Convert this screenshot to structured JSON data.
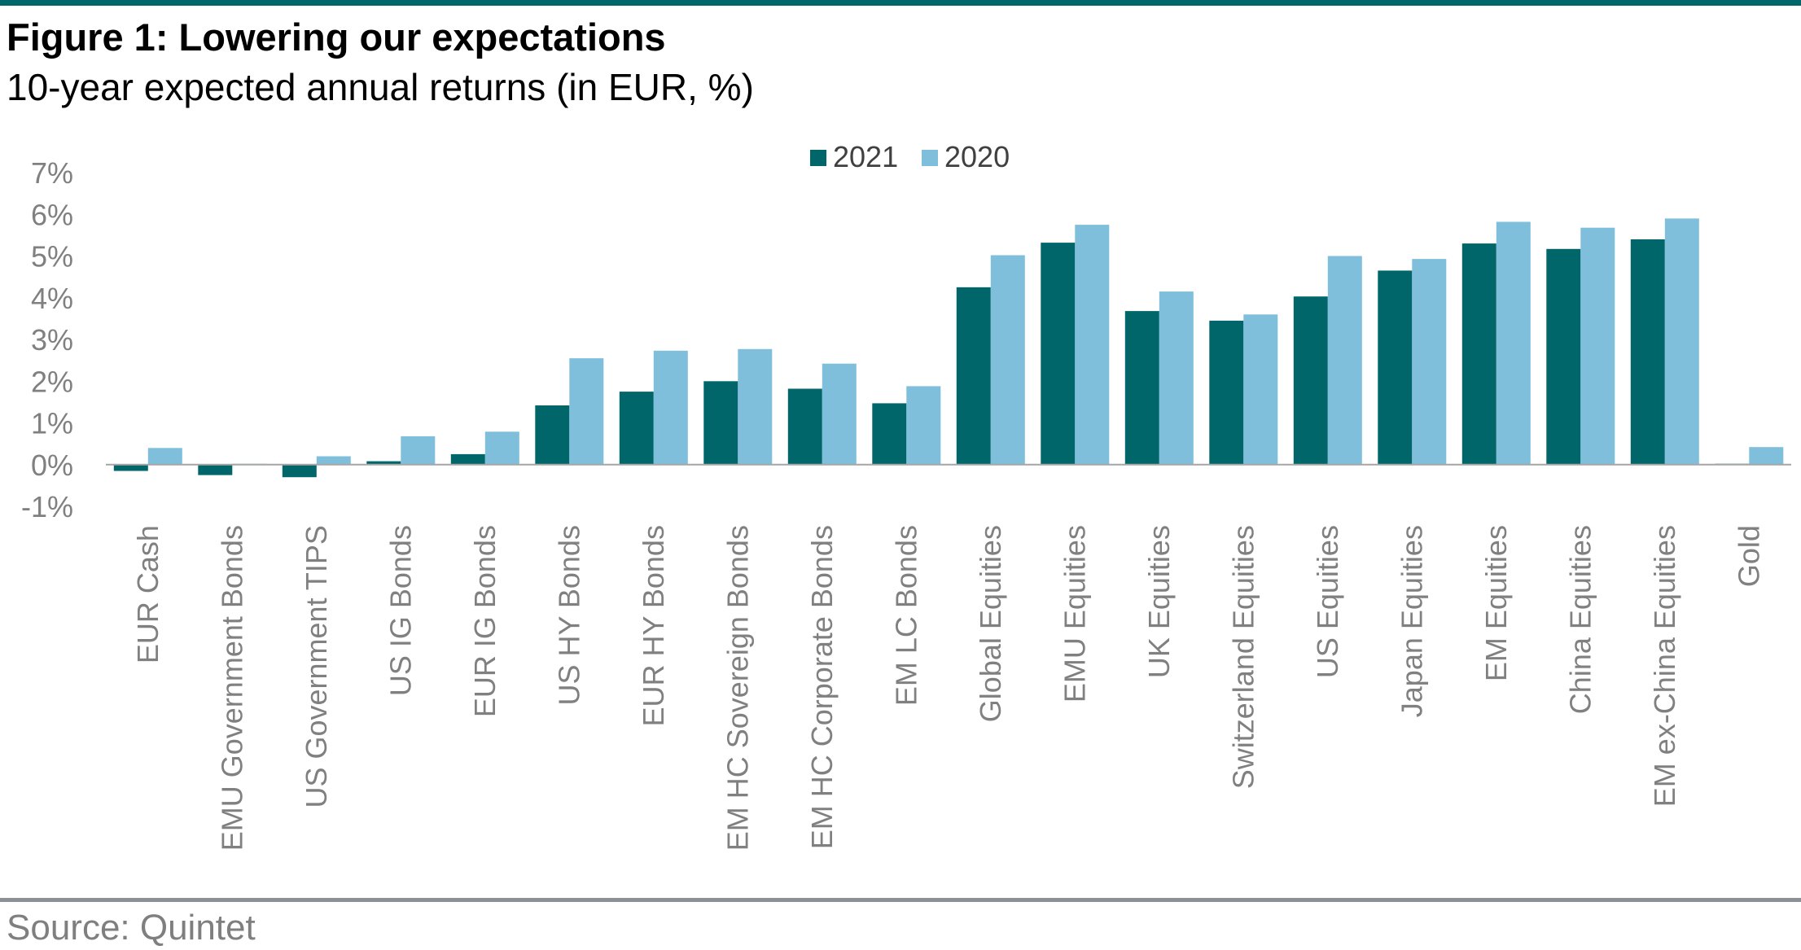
{
  "header": {
    "title": "Figure 1: Lowering our expectations",
    "subtitle": "10-year expected annual returns (in EUR, %)"
  },
  "footer": {
    "source": "Source: Quintet"
  },
  "colors": {
    "series_2021": "#00666A",
    "series_2020": "#7FBFDB",
    "rule_top": "#00666A",
    "axis_text": "#808080"
  },
  "chart_data": {
    "type": "bar",
    "categories": [
      "EUR Cash",
      "EMU Government Bonds",
      "US Government TIPS",
      "US IG Bonds",
      "EUR IG Bonds",
      "US HY Bonds",
      "EUR HY Bonds",
      "EM HC Sovereign Bonds",
      "EM HC Corporate Bonds",
      "EM LC Bonds",
      "Global Equities",
      "EMU Equities",
      "UK Equities",
      "Switzerland Equities",
      "US Equities",
      "Japan Equities",
      "EM Equities",
      "China Equities",
      "EM ex-China Equities",
      "Gold"
    ],
    "series": [
      {
        "name": "2021",
        "values": [
          -0.15,
          -0.25,
          -0.3,
          0.08,
          0.25,
          1.42,
          1.75,
          2.0,
          1.82,
          1.47,
          4.25,
          5.32,
          3.68,
          3.45,
          4.03,
          4.65,
          5.3,
          5.17,
          5.4,
          0.02
        ]
      },
      {
        "name": "2020",
        "values": [
          0.4,
          0.02,
          0.2,
          0.68,
          0.79,
          2.55,
          2.73,
          2.77,
          2.42,
          1.88,
          5.02,
          5.75,
          4.15,
          3.6,
          5.0,
          4.93,
          5.82,
          5.68,
          5.9,
          0.42
        ]
      }
    ],
    "y_ticks": [
      "7%",
      "6%",
      "5%",
      "4%",
      "3%",
      "2%",
      "1%",
      "0%",
      "-1%"
    ],
    "ylim": [
      -1,
      7
    ],
    "legend_position": "top-center",
    "grid": false
  }
}
